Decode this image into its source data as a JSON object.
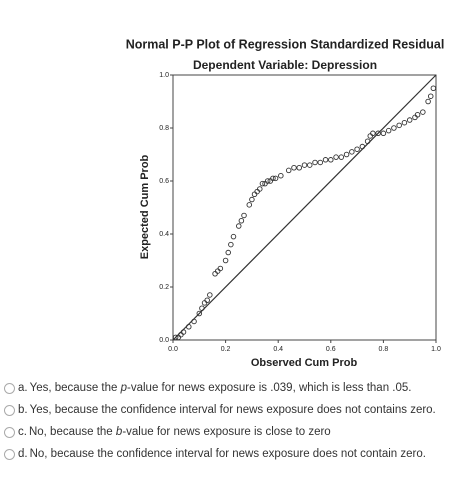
{
  "chart_data": {
    "type": "scatter",
    "title": "Normal P-P Plot of Regression Standardized Residual",
    "subtitle": "Dependent Variable: Depression",
    "xlabel": "Observed Cum Prob",
    "ylabel": "Expected Cum Prob",
    "xlim": [
      0,
      1
    ],
    "ylim": [
      0,
      1
    ],
    "xticks": [
      {
        "value": 0,
        "label": "0.0"
      },
      {
        "value": 0.2,
        "label": "0.2"
      },
      {
        "value": 0.4,
        "label": "0.4"
      },
      {
        "value": 0.6,
        "label": "0.6"
      },
      {
        "value": 0.8,
        "label": "0.8"
      },
      {
        "value": 1,
        "label": "1.0"
      }
    ],
    "yticks": [
      {
        "value": 0,
        "label": "0.0"
      },
      {
        "value": 0.2,
        "label": "0.2"
      },
      {
        "value": 0.4,
        "label": "0.4"
      },
      {
        "value": 0.6,
        "label": "0.6"
      },
      {
        "value": 0.8,
        "label": "0.8"
      },
      {
        "value": 1,
        "label": "1.0"
      }
    ],
    "diagonal": true,
    "color": "#333333",
    "x": [
      0.01,
      0.02,
      0.03,
      0.04,
      0.06,
      0.08,
      0.1,
      0.11,
      0.12,
      0.13,
      0.14,
      0.16,
      0.17,
      0.18,
      0.2,
      0.21,
      0.22,
      0.23,
      0.25,
      0.26,
      0.27,
      0.29,
      0.3,
      0.31,
      0.32,
      0.33,
      0.34,
      0.35,
      0.36,
      0.37,
      0.38,
      0.39,
      0.41,
      0.44,
      0.46,
      0.48,
      0.5,
      0.52,
      0.54,
      0.56,
      0.58,
      0.6,
      0.62,
      0.64,
      0.66,
      0.68,
      0.7,
      0.72,
      0.74,
      0.75,
      0.76,
      0.78,
      0.8,
      0.82,
      0.84,
      0.86,
      0.88,
      0.9,
      0.92,
      0.93,
      0.95,
      0.97,
      0.98,
      0.99
    ],
    "values": [
      0.01,
      0.01,
      0.02,
      0.03,
      0.05,
      0.07,
      0.1,
      0.12,
      0.14,
      0.15,
      0.17,
      0.25,
      0.26,
      0.27,
      0.3,
      0.33,
      0.36,
      0.39,
      0.43,
      0.45,
      0.47,
      0.51,
      0.53,
      0.55,
      0.56,
      0.57,
      0.59,
      0.59,
      0.6,
      0.6,
      0.61,
      0.61,
      0.62,
      0.64,
      0.65,
      0.65,
      0.66,
      0.66,
      0.67,
      0.67,
      0.68,
      0.68,
      0.69,
      0.69,
      0.7,
      0.71,
      0.72,
      0.73,
      0.75,
      0.77,
      0.78,
      0.78,
      0.78,
      0.79,
      0.8,
      0.81,
      0.82,
      0.83,
      0.84,
      0.85,
      0.86,
      0.9,
      0.92,
      0.95
    ]
  },
  "options": [
    {
      "letter": "a.",
      "parts": [
        "Yes, because the ",
        "p",
        "-value for news exposure is .039, which is less than .05."
      ],
      "italic": [
        1
      ]
    },
    {
      "letter": "b.",
      "parts": [
        "Yes, because the confidence interval for news exposure does not contains zero."
      ],
      "italic": []
    },
    {
      "letter": "c.",
      "parts": [
        "No, because the ",
        "b",
        "-value for news exposure is close to zero"
      ],
      "italic": [
        1
      ]
    },
    {
      "letter": "d.",
      "parts": [
        "No, because the confidence interval for news exposure does not contain zero."
      ],
      "italic": []
    }
  ]
}
